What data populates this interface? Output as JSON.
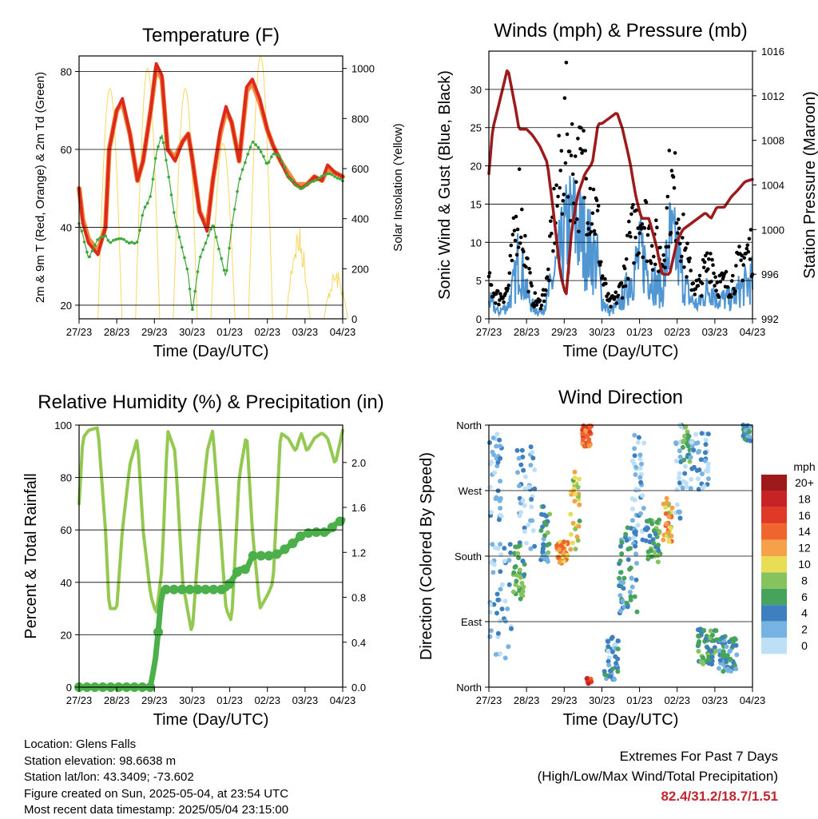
{
  "x_ticks": [
    "27/23",
    "28/23",
    "29/23",
    "30/23",
    "01/23",
    "02/23",
    "03/23",
    "04/23"
  ],
  "x_label": "Time (Day/UTC)",
  "colors": {
    "temp2m": "#dd2a1c",
    "temp9m": "#f08a3a",
    "dewpoint": "#3da83a",
    "solar": "#f6d860",
    "wind": "#4f96d3",
    "gust": "#000000",
    "pressure": "#9c1b1d",
    "rh": "#93c950",
    "rain": "#4bb04a",
    "extremes": "#c0262d"
  },
  "charts": [
    {
      "id": "temperature",
      "type": "line",
      "title": "Temperature (F)",
      "ylabel_left": "2m & 9m T (Red, Orange) & 2m Td (Green)",
      "ylabel_right": "Solar Insolation (Yellow)",
      "yticks_left": [
        "20",
        "40",
        "60",
        "80"
      ],
      "yticks_right": [
        "0",
        "200",
        "400",
        "600",
        "800",
        "1000"
      ],
      "ylim": [
        16.5,
        84
      ],
      "ylim_right": [
        0,
        1050
      ],
      "x": [
        0,
        0.1,
        0.25,
        0.5,
        0.7,
        0.8,
        1.0,
        1.15,
        1.35,
        1.55,
        1.7,
        1.9,
        2.05,
        2.2,
        2.35,
        2.55,
        2.75,
        2.9,
        3.0,
        3.2,
        3.4,
        3.55,
        3.75,
        3.9,
        4.05,
        4.25,
        4.45,
        4.6,
        4.8,
        5.0,
        5.15,
        5.35,
        5.55,
        5.75,
        5.9,
        6.05,
        6.25,
        6.45,
        6.6,
        6.8,
        7.0
      ],
      "series": [
        {
          "key": "temp2m",
          "values": [
            50,
            41,
            36,
            33,
            40,
            60,
            70,
            73,
            64,
            52,
            57,
            70,
            82,
            79,
            60,
            57,
            62,
            64,
            58,
            44,
            39,
            52,
            65,
            71,
            67,
            57,
            76,
            78,
            73,
            65,
            61,
            57,
            53,
            51,
            50,
            51,
            53,
            52,
            56,
            54,
            53
          ]
        },
        {
          "key": "temp9m",
          "values": [
            50,
            42,
            37,
            34,
            40,
            60,
            70,
            72,
            64,
            52,
            57,
            70,
            81,
            78,
            60,
            58,
            62,
            64,
            58,
            44,
            40,
            52,
            64,
            70,
            67,
            57,
            75,
            77,
            72,
            65,
            61,
            57,
            54,
            51,
            51,
            51,
            53,
            52,
            55,
            54,
            53
          ]
        },
        {
          "key": "dewpoint",
          "values": [
            41,
            38,
            32,
            37,
            38,
            36,
            37,
            37,
            36,
            36,
            44,
            48,
            59,
            64,
            55,
            42,
            34,
            28,
            18,
            32,
            37,
            41,
            33,
            27,
            40,
            52,
            58,
            62,
            60,
            56,
            59,
            58,
            53,
            51,
            50,
            51,
            52,
            53,
            54,
            53,
            52
          ]
        }
      ],
      "solar": {
        "peaks": [
          {
            "day": 0.82,
            "value": 920
          },
          {
            "day": 1.82,
            "value": 1000
          },
          {
            "day": 2.82,
            "value": 920
          },
          {
            "day": 3.82,
            "value": 700
          },
          {
            "day": 4.82,
            "value": 1050
          },
          {
            "day": 5.82,
            "value": 380
          },
          {
            "day": 6.82,
            "value": 200
          }
        ]
      }
    },
    {
      "id": "winds",
      "type": "line",
      "title": "Winds (mph) & Pressure (mb)",
      "ylabel_left": "Sonic Wind & Gust (Blue, Black)",
      "ylabel_right": "Station Pressure (Maroon)",
      "yticks_left": [
        "0",
        "5",
        "10",
        "15",
        "20",
        "25",
        "30"
      ],
      "yticks_right": [
        "992",
        "996",
        "1000",
        "1004",
        "1008",
        "1012",
        "1016"
      ],
      "ylim": [
        0,
        35
      ],
      "ylim_right": [
        992,
        1016
      ],
      "x": [
        0,
        0.1,
        0.25,
        0.5,
        0.7,
        0.8,
        1.0,
        1.15,
        1.35,
        1.55,
        1.7,
        1.9,
        2.05,
        2.2,
        2.35,
        2.55,
        2.75,
        2.9,
        3.0,
        3.2,
        3.4,
        3.55,
        3.75,
        3.9,
        4.05,
        4.25,
        4.45,
        4.6,
        4.8,
        5.0,
        5.15,
        5.35,
        5.55,
        5.75,
        5.9,
        6.05,
        6.25,
        6.45,
        6.6,
        6.8,
        7.0
      ],
      "series": [
        {
          "key": "wind",
          "values": [
            3,
            2,
            1,
            2,
            6,
            10,
            4,
            2,
            1,
            3,
            6,
            10,
            13,
            15,
            14,
            12,
            10,
            8,
            3,
            1,
            2,
            3,
            6,
            8,
            10,
            7,
            5,
            4,
            12,
            10,
            6,
            3,
            2,
            4,
            5,
            3,
            3,
            3,
            4,
            5,
            6
          ]
        },
        {
          "key": "gust",
          "values": [
            5,
            4,
            3,
            4,
            12,
            17,
            8,
            3,
            2,
            5,
            13,
            20,
            26,
            22,
            20,
            21,
            17,
            13,
            6,
            2,
            3,
            5,
            11,
            13,
            15,
            12,
            10,
            8,
            18,
            17,
            11,
            6,
            4,
            7,
            9,
            5,
            5,
            5,
            7,
            9,
            10
          ]
        },
        {
          "key": "pressure",
          "values": [
            1005,
            1009,
            1011,
            1014.5,
            1011,
            1009,
            1009,
            1008.5,
            1007.5,
            1006,
            1002,
            996,
            994,
            1000,
            1003,
            1005,
            1006,
            1009.5,
            1009.5,
            1010,
            1010.5,
            1009,
            1006,
            1003,
            1001,
            1001,
            998.5,
            996,
            996,
            999,
            1000,
            1000.5,
            1001,
            1001.5,
            1001,
            1002,
            1002,
            1003,
            1003.5,
            1004.3,
            1004.5
          ]
        }
      ]
    },
    {
      "id": "humidity",
      "type": "line",
      "title": "Relative Humidity (%) & Precipitation (in)",
      "ylabel_left": "Percent & Total Rainfall",
      "yticks_left": [
        "0",
        "20",
        "40",
        "60",
        "80",
        "100"
      ],
      "yticks_right": [
        "0.0",
        "0.4",
        "0.8",
        "1.2",
        "1.6",
        "2.0"
      ],
      "ylim": [
        0,
        100
      ],
      "ylim_right": [
        0,
        2.333
      ],
      "x": [
        0,
        0.1,
        0.25,
        0.5,
        0.7,
        0.8,
        1.0,
        1.15,
        1.35,
        1.55,
        1.7,
        1.9,
        2.05,
        2.2,
        2.35,
        2.55,
        2.75,
        2.9,
        3.0,
        3.2,
        3.4,
        3.55,
        3.75,
        3.9,
        4.05,
        4.25,
        4.45,
        4.6,
        4.8,
        5.0,
        5.15,
        5.35,
        5.55,
        5.75,
        5.9,
        6.05,
        6.25,
        6.45,
        6.6,
        6.8,
        7.0
      ],
      "series": [
        {
          "key": "rh",
          "values": [
            70,
            95,
            98,
            99,
            60,
            30,
            30,
            60,
            85,
            95,
            60,
            35,
            28,
            45,
            98,
            90,
            40,
            28,
            20,
            60,
            90,
            98,
            60,
            30,
            25,
            80,
            97,
            60,
            30,
            35,
            40,
            97,
            95,
            90,
            97,
            90,
            95,
            97,
            95,
            85,
            98
          ]
        },
        {
          "key": "rain",
          "values": [
            0,
            0,
            0,
            0,
            0,
            0,
            0,
            0,
            0,
            0,
            0,
            0,
            0.3,
            0.87,
            0.87,
            0.87,
            0.87,
            0.87,
            0.87,
            0.87,
            0.87,
            0.87,
            0.87,
            0.87,
            0.95,
            1.05,
            1.05,
            1.17,
            1.17,
            1.17,
            1.17,
            1.2,
            1.25,
            1.3,
            1.35,
            1.37,
            1.38,
            1.38,
            1.38,
            1.45,
            1.49
          ]
        }
      ]
    },
    {
      "id": "wind_direction",
      "type": "scatter",
      "title": "Wind Direction",
      "ylabel_left": "Direction (Colored By Speed)",
      "yticks_left": [
        "North",
        "East",
        "South",
        "West",
        "North"
      ],
      "ylim": [
        0,
        360
      ],
      "clusters": [
        {
          "day": 0.15,
          "dir": 290,
          "spread_d": 0.2,
          "spread_deg": 60,
          "speed": 2,
          "n": 40
        },
        {
          "day": 0.3,
          "dir": 120,
          "spread_d": 0.3,
          "spread_deg": 80,
          "speed": 2,
          "n": 45
        },
        {
          "day": 0.8,
          "dir": 160,
          "spread_d": 0.15,
          "spread_deg": 40,
          "speed": 6,
          "n": 35
        },
        {
          "day": 1.0,
          "dir": 260,
          "spread_d": 0.25,
          "spread_deg": 70,
          "speed": 2,
          "n": 40
        },
        {
          "day": 1.5,
          "dir": 210,
          "spread_d": 0.12,
          "spread_deg": 40,
          "speed": 5,
          "n": 30
        },
        {
          "day": 1.95,
          "dir": 185,
          "spread_d": 0.15,
          "spread_deg": 15,
          "speed": 12,
          "n": 40
        },
        {
          "day": 2.28,
          "dir": 240,
          "spread_d": 0.15,
          "spread_deg": 60,
          "speed": 9,
          "n": 30
        },
        {
          "day": 2.6,
          "dir": 345,
          "spread_d": 0.12,
          "spread_deg": 14,
          "speed": 14,
          "n": 45
        },
        {
          "day": 2.65,
          "dir": 8,
          "spread_d": 0.08,
          "spread_deg": 6,
          "speed": 15,
          "n": 10
        },
        {
          "day": 3.25,
          "dir": 40,
          "spread_d": 0.2,
          "spread_deg": 30,
          "speed": 3,
          "n": 40
        },
        {
          "day": 3.7,
          "dir": 160,
          "spread_d": 0.25,
          "spread_deg": 60,
          "speed": 4,
          "n": 55
        },
        {
          "day": 4.0,
          "dir": 270,
          "spread_d": 0.2,
          "spread_deg": 80,
          "speed": 2,
          "n": 40
        },
        {
          "day": 4.35,
          "dir": 200,
          "spread_d": 0.2,
          "spread_deg": 30,
          "speed": 6,
          "n": 40
        },
        {
          "day": 4.75,
          "dir": 230,
          "spread_d": 0.12,
          "spread_deg": 30,
          "speed": 11,
          "n": 35
        },
        {
          "day": 5.1,
          "dir": 300,
          "spread_d": 0.15,
          "spread_deg": 70,
          "speed": 2,
          "n": 30
        },
        {
          "day": 5.25,
          "dir": 335,
          "spread_d": 0.1,
          "spread_deg": 25,
          "speed": 6,
          "n": 20
        },
        {
          "day": 5.6,
          "dir": 310,
          "spread_d": 0.25,
          "spread_deg": 40,
          "speed": 2,
          "n": 40
        },
        {
          "day": 5.8,
          "dir": 55,
          "spread_d": 0.25,
          "spread_deg": 25,
          "speed": 6,
          "n": 60
        },
        {
          "day": 6.35,
          "dir": 45,
          "spread_d": 0.25,
          "spread_deg": 25,
          "speed": 4,
          "n": 60
        },
        {
          "day": 6.85,
          "dir": 350,
          "spread_d": 0.1,
          "spread_deg": 12,
          "speed": 4,
          "n": 20
        }
      ]
    }
  ],
  "speed_legend": {
    "title": "mph",
    "labels": [
      "20+",
      "18",
      "16",
      "14",
      "12",
      "10",
      "8",
      "6",
      "4",
      "2",
      "0"
    ],
    "colors": [
      "#9e1a1a",
      "#c72224",
      "#df3a28",
      "#f0652e",
      "#f6a04a",
      "#e9dd55",
      "#86c35d",
      "#46a35b",
      "#3e7fbf",
      "#77b3e2",
      "#bde0f6"
    ]
  },
  "info": {
    "location": "Location: Glens Falls",
    "elevation": "Station elevation: 98.6638 m",
    "latlon": "Station lat/lon: 43.3409; -73.602",
    "created": "Figure created on Sun, 2025-05-04, at 23:54 UTC",
    "recent": "Most recent data timestamp: 2025/05/04 23:15:00"
  },
  "extremes": {
    "line1": "Extremes For Past 7 Days",
    "line2": "(High/Low/Max Wind/Total Precipitation)",
    "values": "82.4/31.2/18.7/1.51"
  }
}
